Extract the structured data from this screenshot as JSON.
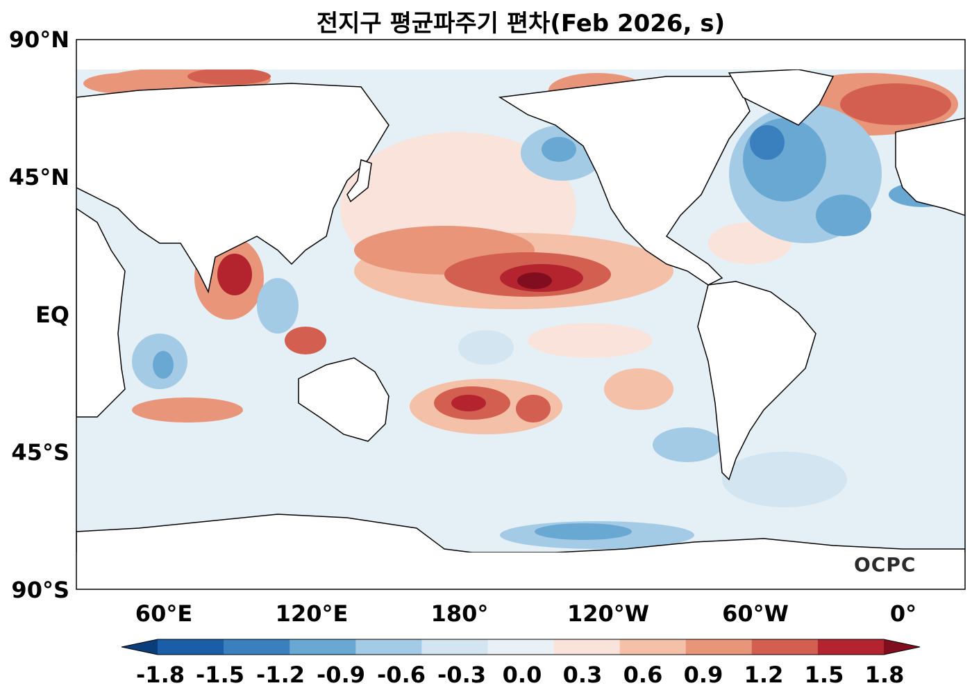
{
  "title": "전지구 평균파주기 편차(Feb 2026, s)",
  "logo": "OCPC",
  "lat_ticks": [
    "90°N",
    "45°N",
    "EQ",
    "45°S",
    "90°S"
  ],
  "lon_ticks": [
    "60°E",
    "120°E",
    "180°",
    "120°W",
    "60°W",
    "0°"
  ],
  "colorbar": {
    "levels": [
      "-1.8",
      "-1.5",
      "-1.2",
      "-0.9",
      "-0.6",
      "-0.3",
      "0.0",
      "0.3",
      "0.6",
      "0.9",
      "1.2",
      "1.5",
      "1.8"
    ],
    "colors": [
      "#0b3d7a",
      "#1b5ea8",
      "#3a80bf",
      "#6aa8d4",
      "#a3cbe6",
      "#d2e5f1",
      "#e9f1f7",
      "#fae3da",
      "#f5c0a8",
      "#e9957a",
      "#d25f4f",
      "#b3242e",
      "#810e1f"
    ],
    "extend": "both"
  },
  "colors": {
    "land": "#ffffff",
    "coast": "#000000",
    "ocean_base": "#e4eff6"
  }
}
